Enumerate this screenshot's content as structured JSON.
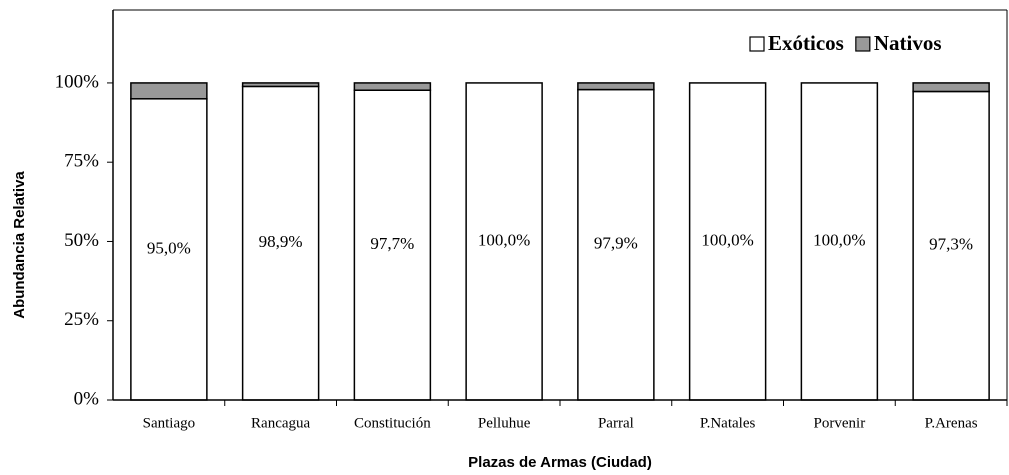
{
  "chart_data": {
    "type": "stacked_bar",
    "categories": [
      "Santiago",
      "Rancagua",
      "Constitución",
      "Pelluhue",
      "Parral",
      "P.Natales",
      "Porvenir",
      "P.Arenas"
    ],
    "series": [
      {
        "name": "Exóticos",
        "color": "#ffffff",
        "values": [
          95.0,
          98.9,
          97.7,
          100,
          97.9,
          100,
          100,
          97.3
        ],
        "value_labels": [
          "95,0%",
          "98,9%",
          "97,7%",
          "100,0%",
          "97,9%",
          "100,0%",
          "100,0%",
          "97,3%"
        ]
      },
      {
        "name": "Nativos",
        "color": "#999999",
        "values": [
          5.0,
          1.1,
          2.3,
          0,
          2.1,
          0,
          0,
          2.7
        ]
      }
    ],
    "ylim": [
      0,
      123
    ],
    "yticks": [
      {
        "value": 0,
        "label": "0%"
      },
      {
        "value": 25,
        "label": "25%"
      },
      {
        "value": 50,
        "label": "50%"
      },
      {
        "value": 75,
        "label": "75%"
      },
      {
        "value": 100,
        "label": "100%"
      }
    ],
    "y_label": "Abundancia Relativa",
    "x_label": "Plazas de Armas (Ciudad)",
    "legend": "upper right"
  }
}
